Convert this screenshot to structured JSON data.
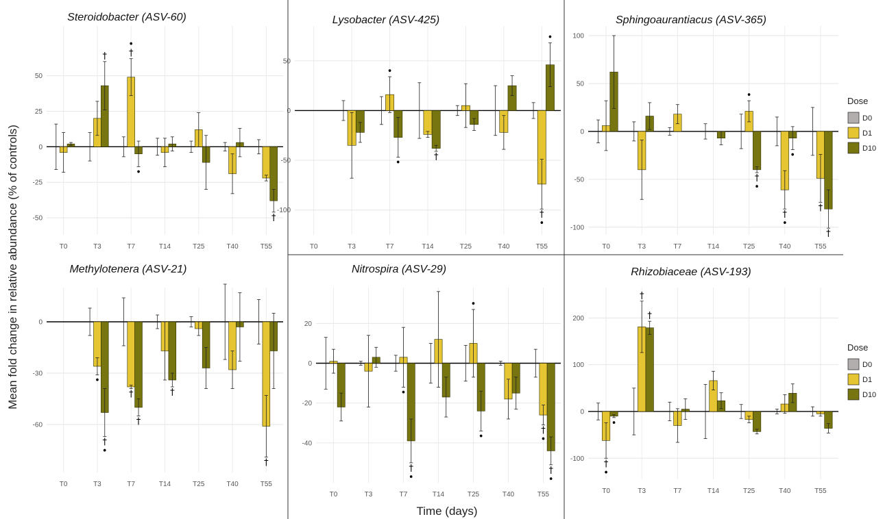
{
  "figure": {
    "ylabel": "Mean fold change in relative abundance (% of controls)",
    "xlabel": "Time (days)"
  },
  "legend": {
    "title": "Dose",
    "entries": [
      {
        "label": "D0",
        "color": "#b3aeae"
      },
      {
        "label": "D1",
        "color": "#e6c533"
      },
      {
        "label": "D10",
        "color": "#767510"
      }
    ]
  },
  "chart_data": [
    {
      "type": "bar",
      "title": "Steroidobacter (ASV-60)",
      "categories": [
        "T0",
        "T3",
        "T7",
        "T14",
        "T25",
        "T40",
        "T55"
      ],
      "ylim": [
        -62,
        85
      ],
      "yticks": [
        -50,
        -25,
        0,
        25,
        50
      ],
      "series": [
        {
          "name": "D0",
          "values": [
            0,
            0,
            0,
            0,
            0,
            0,
            0
          ],
          "err": [
            16,
            10,
            7,
            6,
            4,
            3,
            5
          ]
        },
        {
          "name": "D1",
          "values": [
            -4,
            20,
            49,
            -4,
            12,
            -19,
            -22
          ],
          "err": [
            14,
            12,
            13,
            10,
            12,
            14,
            2
          ]
        },
        {
          "name": "D10",
          "values": [
            2,
            43,
            -5,
            2,
            -11,
            3,
            -38
          ],
          "err": [
            1,
            17,
            9,
            5,
            19,
            10,
            8
          ]
        }
      ],
      "marks": [
        {
          "cat": "T3",
          "series": "D10",
          "text": "†",
          "pos": "above"
        },
        {
          "cat": "T7",
          "series": "D1",
          "text": "• †",
          "pos": "above"
        },
        {
          "cat": "T7",
          "series": "D10",
          "text": "•",
          "pos": "below"
        },
        {
          "cat": "T55",
          "series": "D10",
          "text": "†",
          "pos": "below"
        }
      ]
    },
    {
      "type": "bar",
      "title": "Lysobacter (ASV-425)",
      "categories": [
        "T0",
        "T3",
        "T7",
        "T14",
        "T25",
        "T40",
        "T55"
      ],
      "ylim": [
        -125,
        85
      ],
      "yticks": [
        -100,
        -50,
        0,
        50
      ],
      "series": [
        {
          "name": "D0",
          "values": [
            0,
            0,
            0,
            0,
            0,
            0,
            0
          ],
          "err": [
            0,
            10,
            14,
            28,
            5,
            25,
            8
          ]
        },
        {
          "name": "D1",
          "values": [
            0,
            -35,
            16,
            -24,
            5,
            -22,
            -74
          ],
          "err": [
            0,
            33,
            18,
            3,
            22,
            17,
            25
          ]
        },
        {
          "name": "D10",
          "values": [
            0,
            -22,
            -27,
            -38,
            -14,
            25,
            46
          ],
          "err": [
            0,
            10,
            20,
            3,
            6,
            10,
            22
          ]
        }
      ],
      "marks": [
        {
          "cat": "T7",
          "series": "D1",
          "text": "•",
          "pos": "above"
        },
        {
          "cat": "T7",
          "series": "D10",
          "text": "•",
          "pos": "below"
        },
        {
          "cat": "T14",
          "series": "D10",
          "text": "†",
          "pos": "below"
        },
        {
          "cat": "T55",
          "series": "D1",
          "text": "† •",
          "pos": "below"
        },
        {
          "cat": "T55",
          "series": "D10",
          "text": "•",
          "pos": "above"
        }
      ]
    },
    {
      "type": "bar",
      "title": "Sphingoaurantiacus (ASV-365)",
      "categories": [
        "T0",
        "T3",
        "T7",
        "T14",
        "T25",
        "T40",
        "T55"
      ],
      "ylim": [
        -108,
        110
      ],
      "yticks": [
        -100,
        -50,
        0,
        50,
        100
      ],
      "series": [
        {
          "name": "D0",
          "values": [
            0,
            0,
            0,
            0,
            0,
            0,
            0
          ],
          "err": [
            12,
            10,
            4,
            8,
            18,
            15,
            25
          ]
        },
        {
          "name": "D1",
          "values": [
            6,
            -40,
            18,
            0,
            21,
            -61,
            -49
          ],
          "err": [
            26,
            31,
            10,
            0,
            11,
            20,
            25
          ]
        },
        {
          "name": "D10",
          "values": [
            62,
            16,
            0,
            -7,
            -40,
            -7,
            -81
          ],
          "err": [
            38,
            14,
            0,
            7,
            3,
            12,
            20
          ]
        }
      ],
      "marks": [
        {
          "cat": "T25",
          "series": "D1",
          "text": "•",
          "pos": "above"
        },
        {
          "cat": "T25",
          "series": "D10",
          "text": "† •",
          "pos": "below"
        },
        {
          "cat": "T40",
          "series": "D1",
          "text": "† •",
          "pos": "below"
        },
        {
          "cat": "T40",
          "series": "D10",
          "text": "•",
          "pos": "below"
        },
        {
          "cat": "T55",
          "series": "D1",
          "text": "†",
          "pos": "below"
        },
        {
          "cat": "T55",
          "series": "D10",
          "text": "†",
          "pos": "below"
        }
      ]
    },
    {
      "type": "bar",
      "title": "Methylotenera (ASV-21)",
      "categories": [
        "T0",
        "T3",
        "T7",
        "T14",
        "T25",
        "T40",
        "T55"
      ],
      "ylim": [
        -88,
        20
      ],
      "yticks": [
        -60,
        -30,
        0
      ],
      "series": [
        {
          "name": "D0",
          "values": [
            0,
            0,
            0,
            0,
            0,
            0,
            0
          ],
          "err": [
            0,
            8,
            14,
            4,
            3,
            22,
            13
          ]
        },
        {
          "name": "D1",
          "values": [
            0,
            -26,
            -38,
            -17,
            -4,
            -28,
            -61
          ],
          "err": [
            0,
            5,
            1,
            17,
            4,
            11,
            18
          ]
        },
        {
          "name": "D10",
          "values": [
            0,
            -53,
            -50,
            -34,
            -27,
            -3,
            -17
          ],
          "err": [
            0,
            14,
            5,
            4,
            12,
            20,
            22
          ]
        }
      ],
      "marks": [
        {
          "cat": "T3",
          "series": "D1",
          "text": "•",
          "pos": "below"
        },
        {
          "cat": "T3",
          "series": "D10",
          "text": "† •",
          "pos": "below"
        },
        {
          "cat": "T7",
          "series": "D1",
          "text": "†",
          "pos": "below"
        },
        {
          "cat": "T7",
          "series": "D10",
          "text": "†",
          "pos": "below"
        },
        {
          "cat": "T14",
          "series": "D10",
          "text": "†",
          "pos": "below"
        },
        {
          "cat": "T55",
          "series": "D1",
          "text": "†",
          "pos": "below"
        }
      ]
    },
    {
      "type": "bar",
      "title": "Nitrospira (ASV-29)",
      "categories": [
        "T0",
        "T3",
        "T7",
        "T14",
        "T25",
        "T40",
        "T55"
      ],
      "ylim": [
        -60,
        38
      ],
      "yticks": [
        -40,
        -20,
        0,
        20
      ],
      "series": [
        {
          "name": "D0",
          "values": [
            0,
            0,
            0,
            0,
            0,
            0,
            0
          ],
          "err": [
            13,
            1,
            4,
            10,
            9,
            1,
            7
          ]
        },
        {
          "name": "D1",
          "values": [
            1,
            -4,
            3,
            12,
            10,
            -18,
            -26
          ],
          "err": [
            6,
            18,
            15,
            24,
            17,
            10,
            5
          ]
        },
        {
          "name": "D10",
          "values": [
            -22,
            3,
            -39,
            -17,
            -24,
            -15,
            -44
          ],
          "err": [
            7,
            5,
            11,
            10,
            10,
            8,
            7
          ]
        }
      ],
      "marks": [
        {
          "cat": "T7",
          "series": "D1",
          "text": "•",
          "pos": "below"
        },
        {
          "cat": "T7",
          "series": "D10",
          "text": "† •",
          "pos": "below"
        },
        {
          "cat": "T25",
          "series": "D1",
          "text": "•",
          "pos": "above"
        },
        {
          "cat": "T25",
          "series": "D10",
          "text": "•",
          "pos": "below"
        },
        {
          "cat": "T55",
          "series": "D1",
          "text": "† •",
          "pos": "below"
        },
        {
          "cat": "T55",
          "series": "D10",
          "text": "† •",
          "pos": "below"
        }
      ]
    },
    {
      "type": "bar",
      "title": "Rhizobiaceae (ASV-193)",
      "categories": [
        "T0",
        "T3",
        "T7",
        "T14",
        "T25",
        "T40",
        "T55"
      ],
      "ylim": [
        -145,
        265
      ],
      "yticks": [
        -100,
        0,
        100,
        200
      ],
      "series": [
        {
          "name": "D0",
          "values": [
            0,
            0,
            0,
            0,
            0,
            0,
            0
          ],
          "err": [
            18,
            50,
            20,
            58,
            15,
            5,
            10
          ]
        },
        {
          "name": "D1",
          "values": [
            -62,
            181,
            -30,
            66,
            -17,
            16,
            -5
          ],
          "err": [
            38,
            55,
            36,
            20,
            7,
            20,
            5
          ]
        },
        {
          "name": "D10",
          "values": [
            -10,
            179,
            5,
            23,
            -43,
            39,
            -36
          ],
          "err": [
            3,
            14,
            22,
            17,
            5,
            20,
            10
          ]
        }
      ],
      "marks": [
        {
          "cat": "T0",
          "series": "D1",
          "text": "† •",
          "pos": "below"
        },
        {
          "cat": "T0",
          "series": "D10",
          "text": "•",
          "pos": "below"
        },
        {
          "cat": "T3",
          "series": "D1",
          "text": "†",
          "pos": "above"
        },
        {
          "cat": "T3",
          "series": "D10",
          "text": "†",
          "pos": "above"
        }
      ]
    }
  ]
}
